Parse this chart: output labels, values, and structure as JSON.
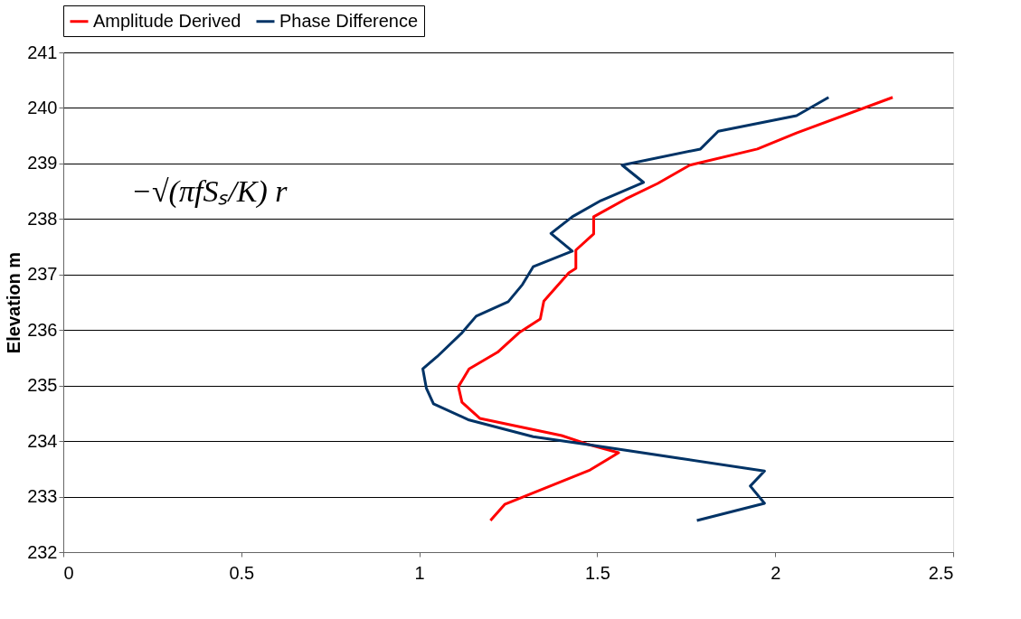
{
  "chart_data": {
    "type": "line",
    "ylabel": "Elevation m",
    "xlim": [
      0,
      2.5
    ],
    "xticks": [
      0,
      0.5,
      1,
      1.5,
      2,
      2.5
    ],
    "ylim": [
      232,
      241
    ],
    "yticks": [
      232,
      233,
      234,
      235,
      236,
      237,
      238,
      239,
      240,
      241
    ],
    "grid": "y",
    "legend": "top",
    "line_style": "solid",
    "marker": "none",
    "annotations": [
      "−√(πfSₛ/K) r"
    ],
    "series": [
      {
        "name": "Amplitude Derived",
        "color": "#ff0000",
        "x": [
          1.2,
          1.24,
          1.48,
          1.56,
          1.47,
          1.4,
          1.17,
          1.12,
          1.11,
          1.14,
          1.22,
          1.28,
          1.34,
          1.35,
          1.42,
          1.44,
          1.44,
          1.49,
          1.49,
          1.58,
          1.67,
          1.76,
          1.95,
          2.06,
          2.33
        ],
        "values": [
          232.57,
          232.86,
          233.48,
          233.79,
          233.95,
          234.1,
          234.41,
          234.7,
          234.98,
          235.3,
          235.6,
          235.95,
          236.2,
          236.52,
          237.03,
          237.11,
          237.44,
          237.73,
          238.04,
          238.36,
          238.64,
          238.97,
          239.26,
          239.55,
          240.19
        ]
      },
      {
        "name": "Phase Difference",
        "color": "#003366",
        "x": [
          1.78,
          1.97,
          1.93,
          1.97,
          1.47,
          1.32,
          1.14,
          1.04,
          1.02,
          1.01,
          1.05,
          1.12,
          1.16,
          1.25,
          1.29,
          1.32,
          1.43,
          1.37,
          1.43,
          1.51,
          1.63,
          1.57,
          1.79,
          1.84,
          2.06,
          2.15
        ],
        "values": [
          232.57,
          232.88,
          233.19,
          233.46,
          233.94,
          234.08,
          234.38,
          234.67,
          234.95,
          235.3,
          235.52,
          235.95,
          236.25,
          236.51,
          236.82,
          237.14,
          237.42,
          237.74,
          238.04,
          238.33,
          238.66,
          238.97,
          239.26,
          239.58,
          239.86,
          240.19
        ]
      }
    ]
  }
}
